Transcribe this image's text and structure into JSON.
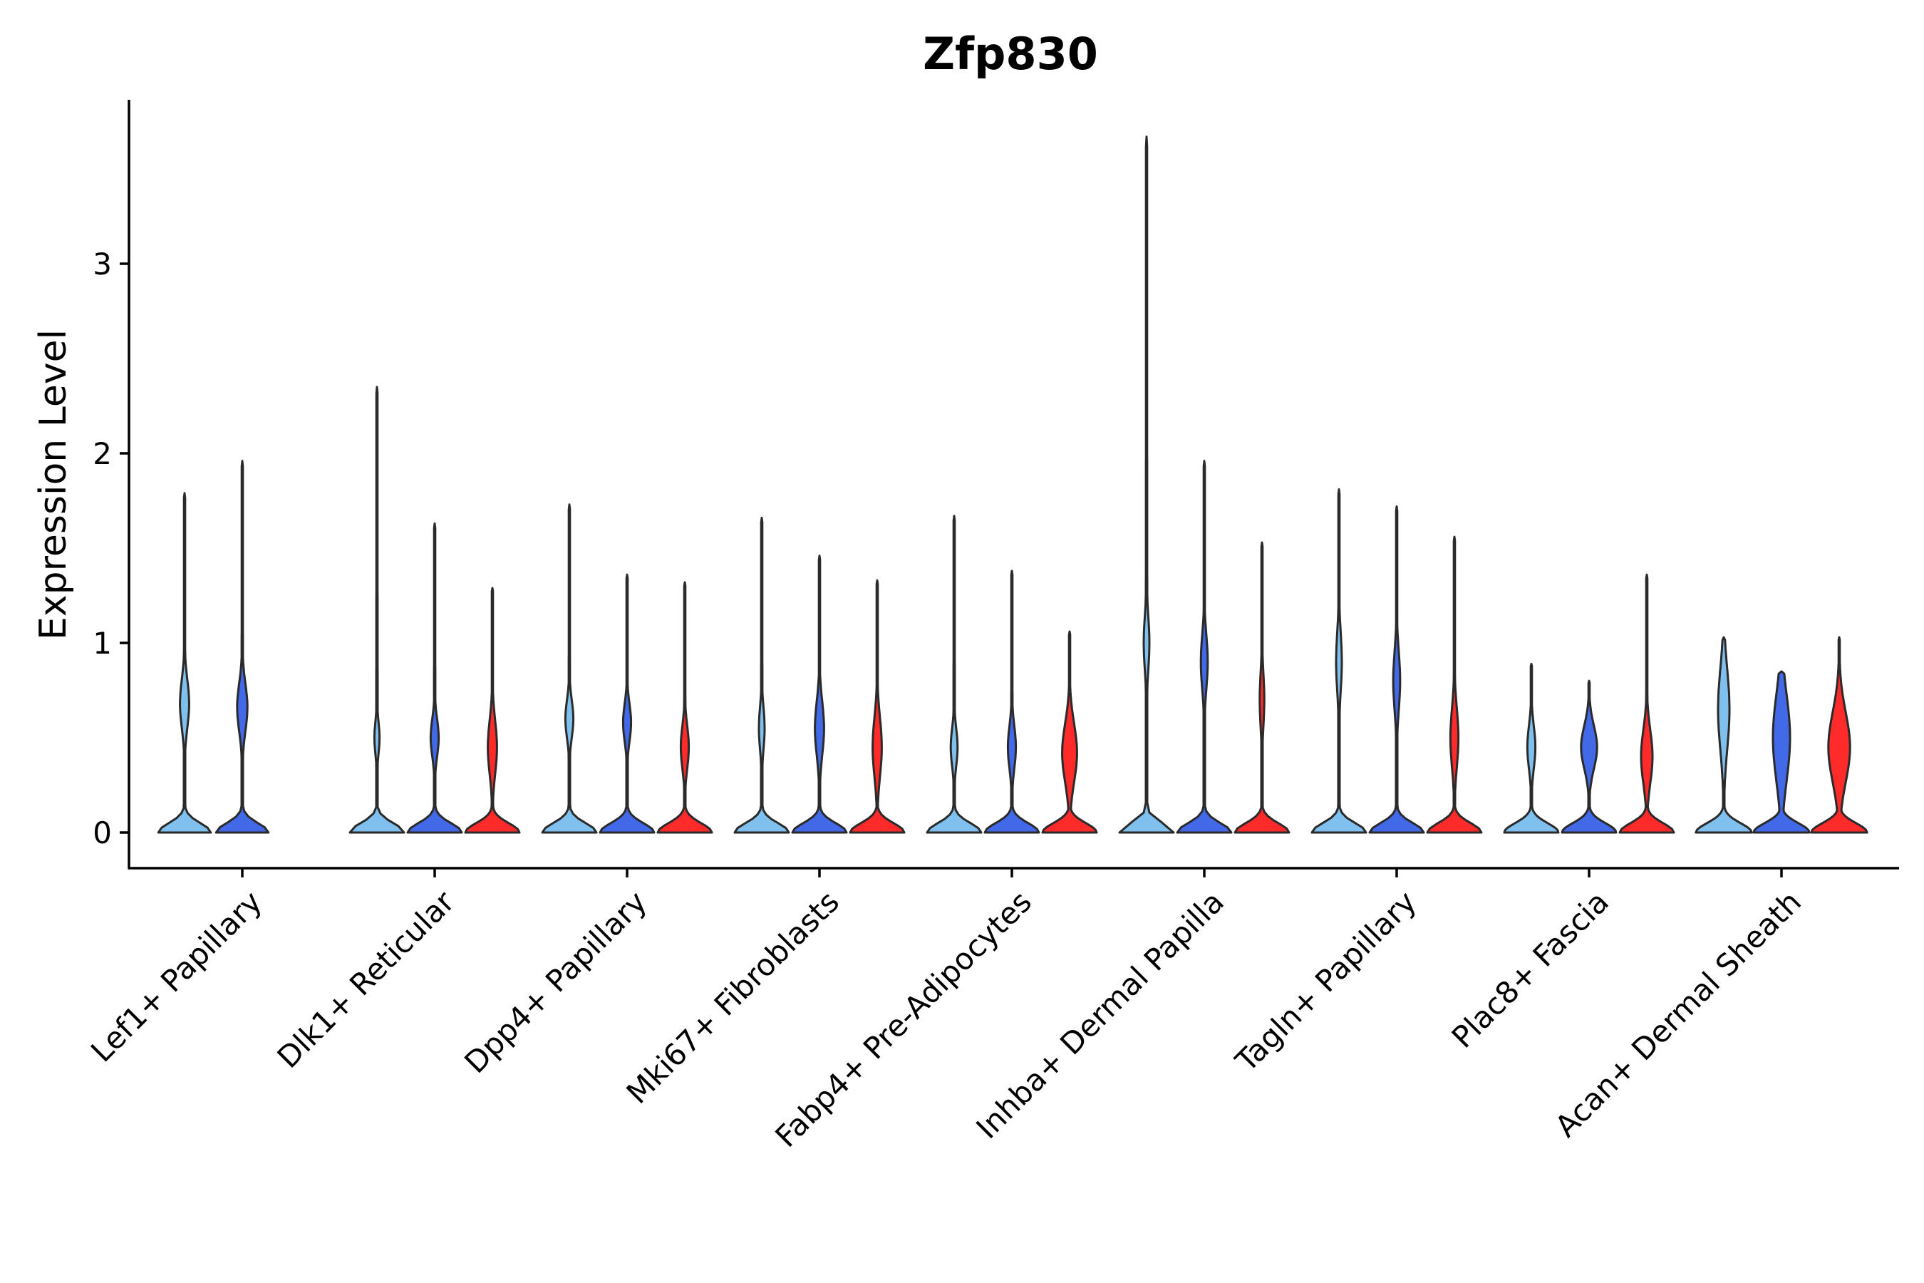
{
  "chart_data": {
    "type": "violin",
    "title": "Zfp830",
    "xlabel": "",
    "ylabel": "Expression Level",
    "ylim": [
      -0.18,
      3.85
    ],
    "yticks": [
      0,
      1,
      2,
      3
    ],
    "ytick_labels": [
      "0",
      "1",
      "2",
      "3"
    ],
    "grid": false,
    "legend": "none",
    "categories": [
      "Lef1+ Papillary",
      "Dlk1+ Reticular",
      "Dpp4+ Papillary",
      "Mki67+ Fibroblasts",
      "Fabp4+ Pre-Adipocytes",
      "Inhba+ Dermal Papilla",
      "Tagln+ Papillary",
      "Plac8+ Fascia",
      "Acan+ Dermal Sheath"
    ],
    "series_colors": [
      "#7fc0ee",
      "#4169e8",
      "#ff2a2a"
    ],
    "violins": [
      {
        "category": "Lef1+ Papillary",
        "group": 0,
        "max": 1.79,
        "mode": 0.68,
        "mode_width": 0.16,
        "mode_height": 0.18,
        "base_width": 0.92
      },
      {
        "category": "Lef1+ Papillary",
        "group": 1,
        "max": 1.96,
        "mode": 0.66,
        "mode_width": 0.18,
        "mode_height": 0.18,
        "base_width": 0.92
      },
      {
        "category": "Dlk1+ Reticular",
        "group": 0,
        "max": 2.35,
        "mode": 0.5,
        "mode_width": 0.09,
        "mode_height": 0.12,
        "base_width": 0.95
      },
      {
        "category": "Dlk1+ Reticular",
        "group": 1,
        "max": 1.63,
        "mode": 0.5,
        "mode_width": 0.14,
        "mode_height": 0.14,
        "base_width": 0.95
      },
      {
        "category": "Dlk1+ Reticular",
        "group": 2,
        "max": 1.29,
        "mode": 0.45,
        "mode_width": 0.16,
        "mode_height": 0.2,
        "base_width": 0.95
      },
      {
        "category": "Dpp4+ Papillary",
        "group": 0,
        "max": 1.73,
        "mode": 0.6,
        "mode_width": 0.14,
        "mode_height": 0.14,
        "base_width": 0.95
      },
      {
        "category": "Dpp4+ Papillary",
        "group": 1,
        "max": 1.36,
        "mode": 0.58,
        "mode_width": 0.14,
        "mode_height": 0.14,
        "base_width": 0.95
      },
      {
        "category": "Dpp4+ Papillary",
        "group": 2,
        "max": 1.32,
        "mode": 0.45,
        "mode_width": 0.14,
        "mode_height": 0.16,
        "base_width": 0.95
      },
      {
        "category": "Mki67+ Fibroblasts",
        "group": 0,
        "max": 1.66,
        "mode": 0.55,
        "mode_width": 0.1,
        "mode_height": 0.16,
        "base_width": 0.95
      },
      {
        "category": "Mki67+ Fibroblasts",
        "group": 1,
        "max": 1.46,
        "mode": 0.55,
        "mode_width": 0.16,
        "mode_height": 0.2,
        "base_width": 0.95
      },
      {
        "category": "Mki67+ Fibroblasts",
        "group": 2,
        "max": 1.33,
        "mode": 0.45,
        "mode_width": 0.16,
        "mode_height": 0.22,
        "base_width": 0.95
      },
      {
        "category": "Fabp4+ Pre-Adipocytes",
        "group": 0,
        "max": 1.67,
        "mode": 0.45,
        "mode_width": 0.12,
        "mode_height": 0.14,
        "base_width": 0.95
      },
      {
        "category": "Fabp4+ Pre-Adipocytes",
        "group": 1,
        "max": 1.38,
        "mode": 0.45,
        "mode_width": 0.14,
        "mode_height": 0.16,
        "base_width": 0.95
      },
      {
        "category": "Fabp4+ Pre-Adipocytes",
        "group": 2,
        "max": 1.06,
        "mode": 0.42,
        "mode_width": 0.26,
        "mode_height": 0.22,
        "base_width": 0.95
      },
      {
        "category": "Inhba+ Dermal Papilla",
        "group": 0,
        "max": 3.67,
        "mode": 1.0,
        "mode_width": 0.1,
        "mode_height": 0.2,
        "base_width": 0.95
      },
      {
        "category": "Inhba+ Dermal Papilla",
        "group": 1,
        "max": 1.96,
        "mode": 0.9,
        "mode_width": 0.12,
        "mode_height": 0.2,
        "base_width": 0.95
      },
      {
        "category": "Inhba+ Dermal Papilla",
        "group": 2,
        "max": 1.53,
        "mode": 0.7,
        "mode_width": 0.08,
        "mode_height": 0.2,
        "base_width": 0.95
      },
      {
        "category": "Tagln+ Papillary",
        "group": 0,
        "max": 1.81,
        "mode": 0.9,
        "mode_width": 0.1,
        "mode_height": 0.22,
        "base_width": 0.95
      },
      {
        "category": "Tagln+ Papillary",
        "group": 1,
        "max": 1.72,
        "mode": 0.8,
        "mode_width": 0.12,
        "mode_height": 0.22,
        "base_width": 0.95
      },
      {
        "category": "Tagln+ Papillary",
        "group": 2,
        "max": 1.56,
        "mode": 0.5,
        "mode_width": 0.14,
        "mode_height": 0.22,
        "base_width": 0.95
      },
      {
        "category": "Plac8+ Fascia",
        "group": 0,
        "max": 0.89,
        "mode": 0.45,
        "mode_width": 0.14,
        "mode_height": 0.16,
        "base_width": 0.95
      },
      {
        "category": "Plac8+ Fascia",
        "group": 1,
        "max": 0.8,
        "mode": 0.45,
        "mode_width": 0.28,
        "mode_height": 0.16,
        "base_width": 0.95
      },
      {
        "category": "Plac8+ Fascia",
        "group": 2,
        "max": 1.36,
        "mode": 0.4,
        "mode_width": 0.2,
        "mode_height": 0.2,
        "base_width": 0.95
      },
      {
        "category": "Acan+ Dermal Sheath",
        "group": 0,
        "max": 1.03,
        "mode": 0.65,
        "mode_width": 0.2,
        "mode_height": 0.3,
        "base_width": 0.98
      },
      {
        "category": "Acan+ Dermal Sheath",
        "group": 1,
        "max": 0.85,
        "mode": 0.5,
        "mode_width": 0.3,
        "mode_height": 0.32,
        "base_width": 0.98
      },
      {
        "category": "Acan+ Dermal Sheath",
        "group": 2,
        "max": 1.03,
        "mode": 0.45,
        "mode_width": 0.38,
        "mode_height": 0.26,
        "base_width": 0.98
      }
    ]
  }
}
